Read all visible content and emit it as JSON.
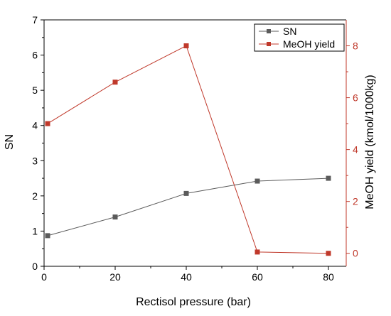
{
  "chart_data": {
    "type": "line",
    "xlabel": "Rectisol pressure (bar)",
    "ylabel_left": "SN",
    "ylabel_right": "MeOH yield (kmol/1000kg)",
    "x_ticks": [
      0,
      20,
      40,
      60,
      80
    ],
    "y_left_ticks": [
      0,
      1,
      2,
      3,
      4,
      5,
      6,
      7
    ],
    "y_right_ticks": [
      0,
      2,
      4,
      6,
      8
    ],
    "xlim": [
      0,
      85
    ],
    "ylim_left": [
      0,
      7
    ],
    "ylim_right": [
      -0.5,
      9
    ],
    "grid": false,
    "legend_position": "top-right",
    "colors": {
      "sn": "#5b5b5b",
      "meoh": "#c0392b",
      "axis": "#000000"
    },
    "series": [
      {
        "name": "SN",
        "axis": "left",
        "x": [
          1,
          20,
          40,
          60,
          80
        ],
        "y": [
          0.87,
          1.4,
          2.07,
          2.42,
          2.5
        ]
      },
      {
        "name": "MeOH yield",
        "axis": "right",
        "x": [
          1,
          20,
          40,
          60,
          80
        ],
        "y": [
          5.0,
          6.6,
          8.0,
          0.05,
          0.0
        ]
      }
    ]
  }
}
